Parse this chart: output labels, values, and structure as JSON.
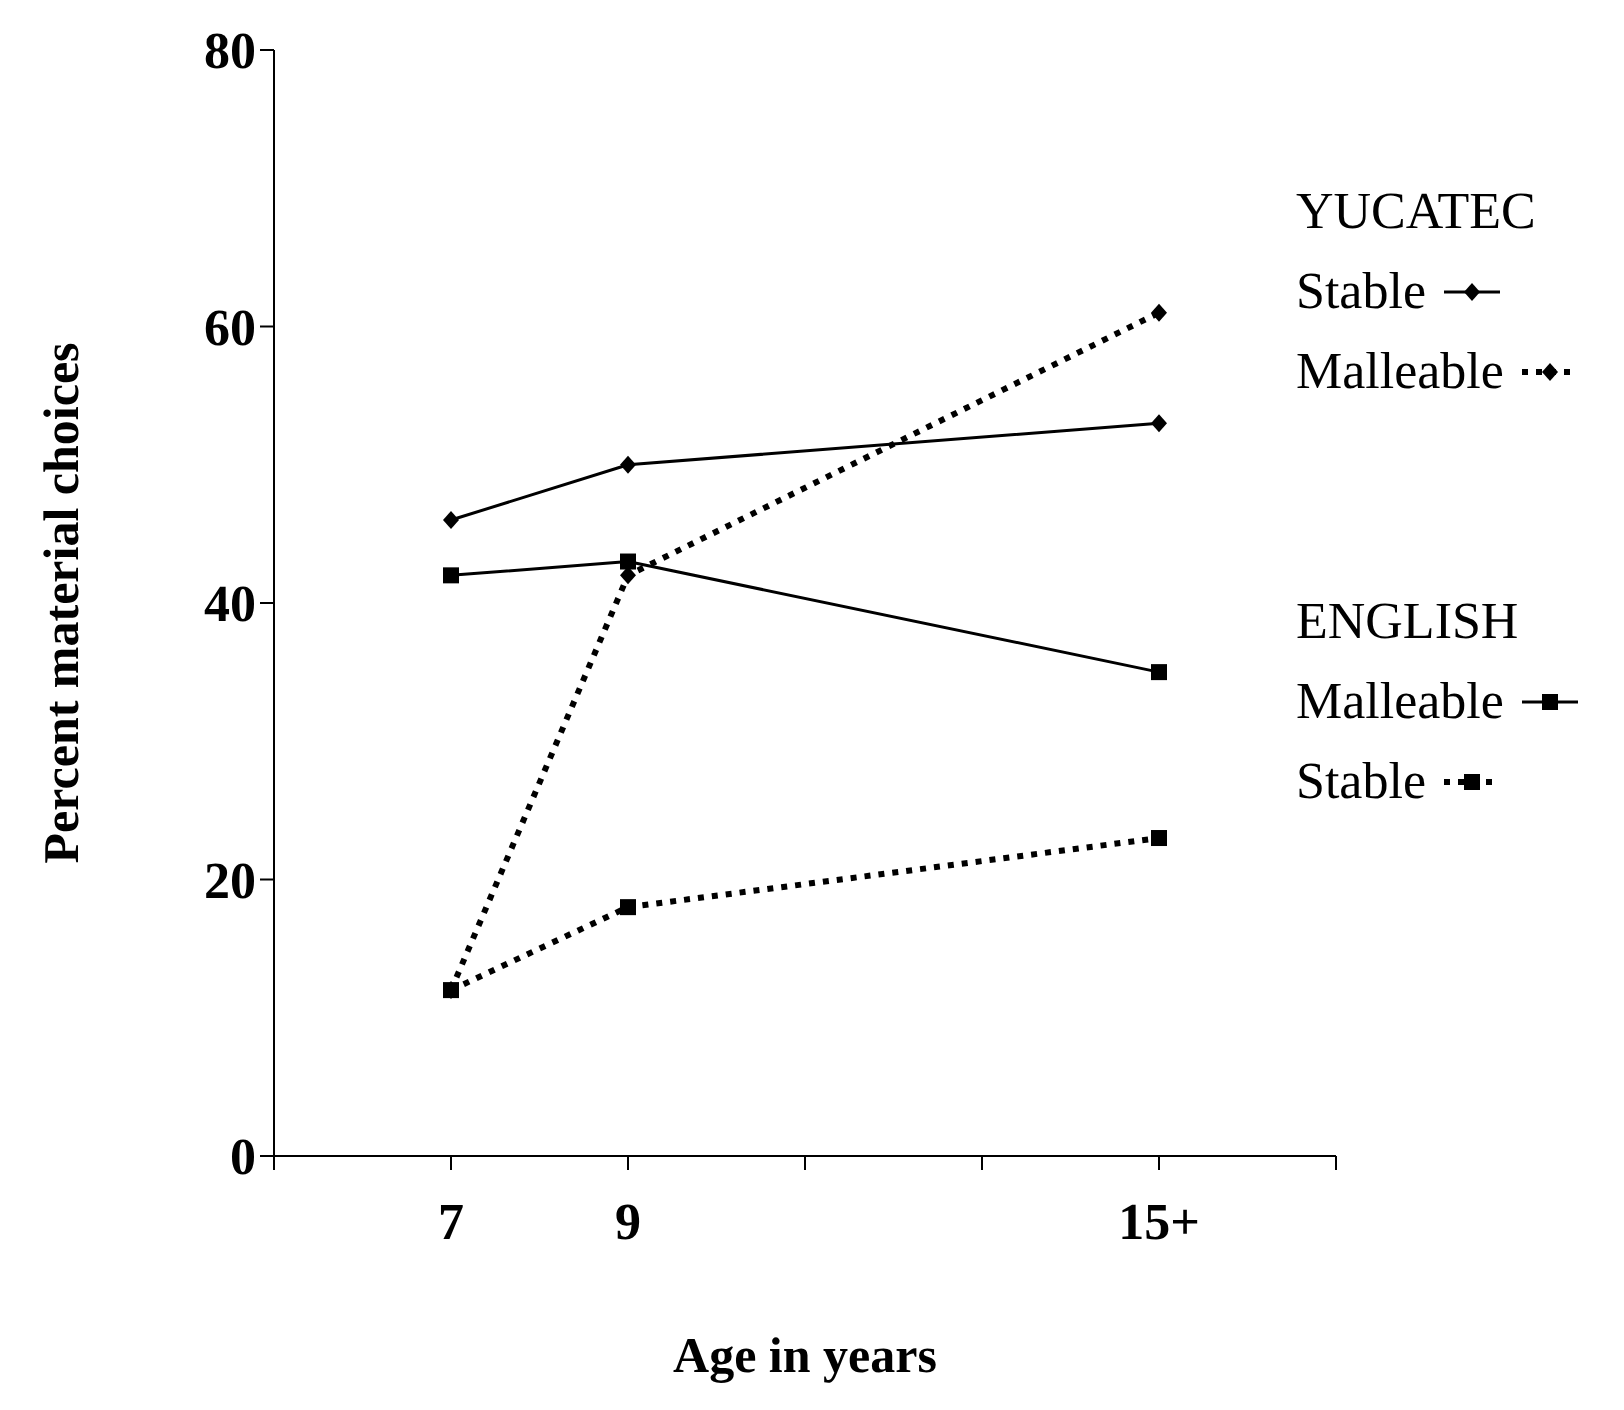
{
  "chart_data": {
    "type": "line",
    "xlabel": "Age in years",
    "ylabel": "Percent material choices",
    "categories": [
      null,
      "7",
      "9",
      null,
      null,
      "15+",
      null
    ],
    "series": [
      {
        "name": "Stable",
        "color": "#000000",
        "marker": "diamond",
        "line_style": "solid",
        "values": [
          null,
          46,
          50,
          null,
          null,
          53,
          null
        ]
      },
      {
        "name": "Malleable",
        "color": "#000000",
        "marker": "diamond",
        "line_style": "dotted",
        "values": [
          null,
          12,
          42,
          null,
          null,
          61,
          null
        ]
      },
      {
        "name": "Malleable",
        "color": "#000000",
        "marker": "square",
        "line_style": "solid",
        "values": [
          null,
          42,
          43,
          null,
          null,
          35,
          null
        ]
      },
      {
        "name": "Stable",
        "color": "#000000",
        "marker": "square",
        "line_style": "dotted",
        "values": [
          null,
          12,
          18,
          null,
          null,
          23,
          null
        ]
      }
    ],
    "annotations": [
      "YUCATEC",
      "ENGLISH"
    ],
    "ylim": [
      0,
      80
    ],
    "yticks": [
      0,
      20,
      40,
      60,
      80
    ],
    "grid": false,
    "legend": "right"
  }
}
